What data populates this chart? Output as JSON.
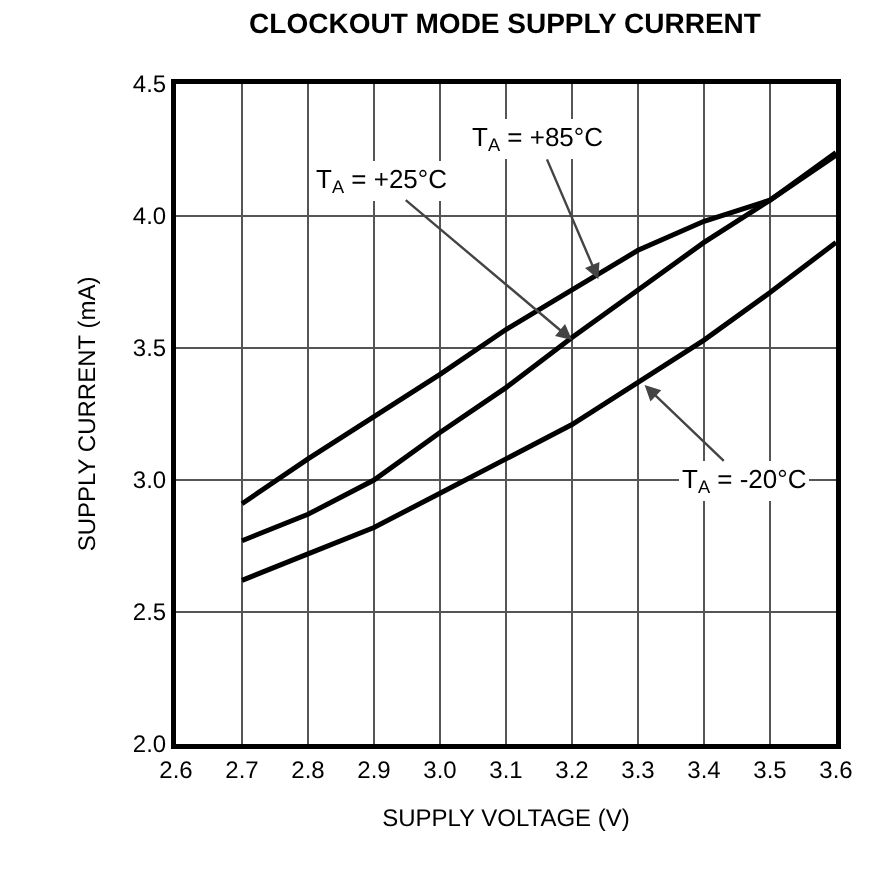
{
  "chart_data": {
    "type": "line",
    "title": "CLOCKOUT MODE SUPPLY CURRENT",
    "xlabel": "SUPPLY VOLTAGE (V)",
    "ylabel": "SUPPLY CURRENT (mA)",
    "x": [
      2.7,
      2.8,
      2.9,
      3.0,
      3.1,
      3.2,
      3.3,
      3.4,
      3.5,
      3.6
    ],
    "series": [
      {
        "color": "#000000",
        "values": [
          2.91,
          3.08,
          3.24,
          3.4,
          3.57,
          3.72,
          3.87,
          3.98,
          4.06,
          4.24
        ]
      },
      {
        "color": "#000000",
        "values": [
          2.77,
          2.87,
          3.0,
          3.18,
          3.35,
          3.54,
          3.72,
          3.9,
          4.06,
          4.23
        ]
      },
      {
        "color": "#000000",
        "values": [
          2.62,
          2.72,
          2.82,
          2.95,
          3.08,
          3.21,
          3.37,
          3.53,
          3.71,
          3.9
        ]
      }
    ],
    "annotations": [
      {
        "text": "T$_{A}$ = +85°C",
        "x": 3.24,
        "y": 3.76
      },
      {
        "text": "T$_{A}$ = +25°C",
        "x": 3.2,
        "y": 3.53
      },
      {
        "text": "T$_{A}$ = -20°C",
        "x": 3.31,
        "y": 3.36
      }
    ],
    "xlim": [
      2.6,
      3.6
    ],
    "xticks": [
      2.6,
      2.7,
      2.8,
      2.9,
      {
        "value": 3,
        "label": "3.0"
      },
      3.1,
      3.2,
      3.3,
      3.4,
      3.5,
      3.6
    ],
    "ylim": [
      2.0,
      4.5
    ],
    "yticks": [
      {
        "value": 2,
        "label": "2.0"
      },
      2.5,
      {
        "value": 3,
        "label": "3.0"
      },
      3.5,
      {
        "value": 4,
        "label": "4.0"
      },
      4.5
    ],
    "grid": true,
    "marker": "none",
    "line_style": "solid"
  }
}
